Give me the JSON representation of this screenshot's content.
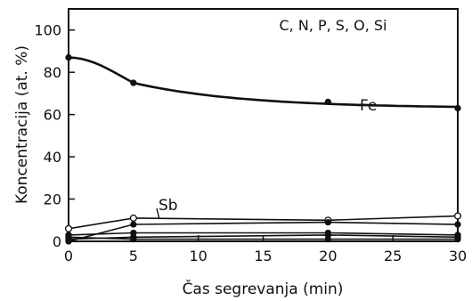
{
  "chart_data": {
    "type": "line",
    "title": "",
    "xlabel": "Čas segrevanja (min)",
    "ylabel": "Koncentracija (at. %)",
    "xlim": [
      0,
      30
    ],
    "ylim": [
      0,
      110
    ],
    "xticks": [
      0,
      5,
      10,
      15,
      20,
      25,
      30
    ],
    "yticks": [
      0,
      20,
      40,
      60,
      80,
      100
    ],
    "grid": false,
    "legend": "none",
    "annotations": [
      {
        "text": "C, N, P, S, O, Si",
        "placement": "top-right"
      },
      {
        "text": "Fe",
        "series": "Fe"
      },
      {
        "text": "Sb",
        "series": "Sb"
      }
    ],
    "series": [
      {
        "name": "Fe",
        "marker": "circle",
        "x": [
          0,
          5,
          20,
          30
        ],
        "values": [
          87,
          75,
          66,
          63
        ]
      },
      {
        "name": "Sb",
        "marker": "circle-open",
        "x": [
          0,
          5,
          20,
          30
        ],
        "values": [
          6,
          11,
          10,
          12
        ]
      },
      {
        "name": "",
        "marker": "circle",
        "x": [
          0,
          5,
          20,
          30
        ],
        "values": [
          0,
          8,
          9,
          8
        ]
      },
      {
        "name": "",
        "marker": "circle",
        "x": [
          0,
          5,
          20,
          30
        ],
        "values": [
          3,
          4,
          4,
          3
        ]
      },
      {
        "name": "",
        "marker": "circle",
        "x": [
          0,
          5,
          20,
          30
        ],
        "values": [
          1,
          2,
          3,
          2
        ]
      },
      {
        "name": "",
        "marker": "circle",
        "x": [
          0,
          5,
          20,
          30
        ],
        "values": [
          2,
          1,
          1,
          1
        ]
      }
    ],
    "colors": {
      "ink": "#111111",
      "background": "#ffffff"
    }
  }
}
